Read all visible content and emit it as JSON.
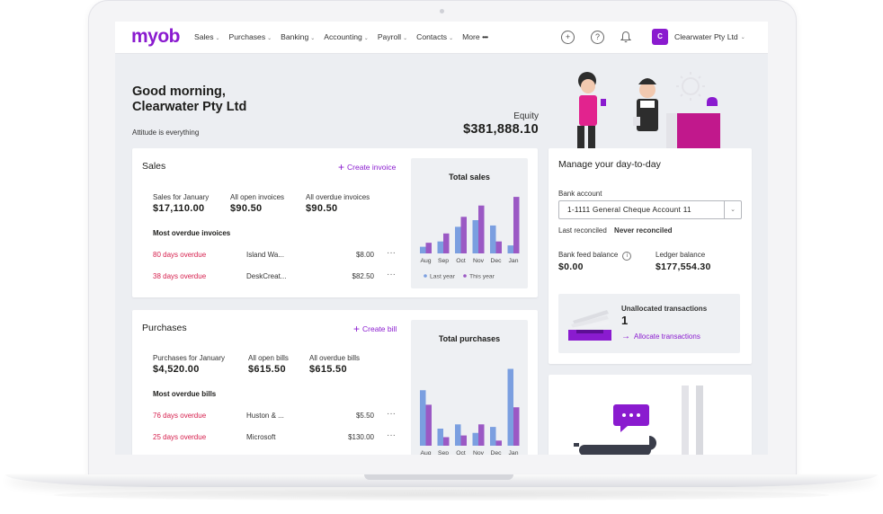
{
  "nav": {
    "logo": "myob",
    "items": [
      {
        "label": "Sales"
      },
      {
        "label": "Purchases"
      },
      {
        "label": "Banking"
      },
      {
        "label": "Accounting"
      },
      {
        "label": "Payroll"
      },
      {
        "label": "Contacts"
      }
    ],
    "more_label": "More",
    "company_initial": "C",
    "company_name": "Clearwater Pty Ltd"
  },
  "header": {
    "greeting_line1": "Good morning,",
    "greeting_line2": "Clearwater Pty Ltd",
    "tagline": "Attitude is everything",
    "equity_label": "Equity",
    "equity_value": "$381,888.10"
  },
  "sales": {
    "title": "Sales",
    "create_label": "Create invoice",
    "metrics": [
      {
        "label": "Sales for January",
        "value": "$17,110.00"
      },
      {
        "label": "All open invoices",
        "value": "$90.50"
      },
      {
        "label": "All overdue invoices",
        "value": "$90.50"
      }
    ],
    "overdue_title": "Most overdue invoices",
    "rows": [
      {
        "overdue": "80 days overdue",
        "name": "Island Wa...",
        "amount": "$8.00"
      },
      {
        "overdue": "38 days overdue",
        "name": "DeskCreat...",
        "amount": "$82.50"
      }
    ]
  },
  "purchases": {
    "title": "Purchases",
    "create_label": "Create bill",
    "metrics": [
      {
        "label": "Purchases for January",
        "value": "$4,520.00"
      },
      {
        "label": "All open bills",
        "value": "$615.50"
      },
      {
        "label": "All overdue bills",
        "value": "$615.50"
      }
    ],
    "overdue_title": "Most overdue bills",
    "rows": [
      {
        "overdue": "76 days overdue",
        "name": "Huston & ...",
        "amount": "$5.50"
      },
      {
        "overdue": "25 days overdue",
        "name": "Microsoft",
        "amount": "$130.00"
      }
    ]
  },
  "manage": {
    "title": "Manage your day-to-day",
    "bank_account_label": "Bank account",
    "bank_account_value": "1-1111 General Cheque Account 11",
    "last_reconciled_label": "Last reconciled",
    "last_reconciled_value": "Never reconciled",
    "bank_feed_label": "Bank feed balance",
    "bank_feed_value": "$0.00",
    "ledger_label": "Ledger balance",
    "ledger_value": "$177,554.30",
    "unallocated_label": "Unallocated transactions",
    "unallocated_count": "1",
    "allocate_label": "Allocate transactions"
  },
  "colors": {
    "brand": "#8a1bcf",
    "last_year": "#7b9fe0",
    "this_year": "#9b59c4",
    "overdue": "#d6204e"
  },
  "chart_data": [
    {
      "type": "bar",
      "title": "Total sales",
      "categories": [
        "Aug",
        "Sep",
        "Oct",
        "Nov",
        "Dec",
        "Jan"
      ],
      "series": [
        {
          "name": "Last year",
          "color": "#7b9fe0",
          "values": [
            10,
            18,
            40,
            50,
            42,
            12
          ]
        },
        {
          "name": "This year",
          "color": "#9b59c4",
          "values": [
            16,
            30,
            55,
            72,
            18,
            85
          ]
        }
      ],
      "ylim": [
        0,
        100
      ],
      "legend": "bottom"
    },
    {
      "type": "bar",
      "title": "Total purchases",
      "categories": [
        "Aug",
        "Sep",
        "Oct",
        "Nov",
        "Dec",
        "Jan"
      ],
      "series": [
        {
          "name": "Last year",
          "color": "#7b9fe0",
          "values": [
            65,
            20,
            25,
            15,
            22,
            90
          ]
        },
        {
          "name": "This year",
          "color": "#9b59c4",
          "values": [
            48,
            10,
            12,
            25,
            6,
            45
          ]
        }
      ],
      "ylim": [
        0,
        100
      ]
    }
  ]
}
